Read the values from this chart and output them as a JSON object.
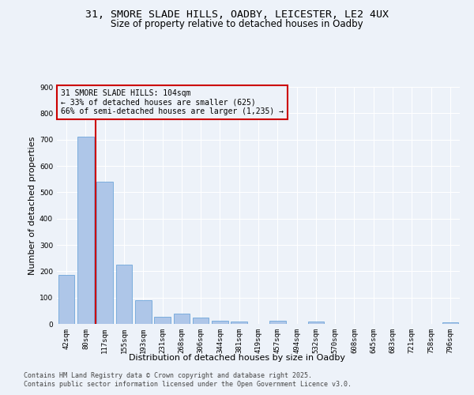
{
  "title_line1": "31, SMORE SLADE HILLS, OADBY, LEICESTER, LE2 4UX",
  "title_line2": "Size of property relative to detached houses in Oadby",
  "xlabel": "Distribution of detached houses by size in Oadby",
  "ylabel": "Number of detached properties",
  "categories": [
    "42sqm",
    "80sqm",
    "117sqm",
    "155sqm",
    "193sqm",
    "231sqm",
    "268sqm",
    "306sqm",
    "344sqm",
    "381sqm",
    "419sqm",
    "457sqm",
    "494sqm",
    "532sqm",
    "570sqm",
    "608sqm",
    "645sqm",
    "683sqm",
    "721sqm",
    "758sqm",
    "796sqm"
  ],
  "values": [
    185,
    710,
    540,
    225,
    90,
    28,
    38,
    25,
    12,
    10,
    0,
    12,
    0,
    10,
    0,
    0,
    0,
    0,
    0,
    0,
    5
  ],
  "bar_color": "#aec6e8",
  "bar_edge_color": "#5b9bd5",
  "vline_x": 1.5,
  "vline_color": "#cc0000",
  "annotation_text": "31 SMORE SLADE HILLS: 104sqm\n← 33% of detached houses are smaller (625)\n66% of semi-detached houses are larger (1,235) →",
  "annotation_box_color": "#cc0000",
  "ylim": [
    0,
    900
  ],
  "yticks": [
    0,
    100,
    200,
    300,
    400,
    500,
    600,
    700,
    800,
    900
  ],
  "footer_line1": "Contains HM Land Registry data © Crown copyright and database right 2025.",
  "footer_line2": "Contains public sector information licensed under the Open Government Licence v3.0.",
  "bg_color": "#edf2f9",
  "grid_color": "#ffffff",
  "title_fontsize": 9.5,
  "subtitle_fontsize": 8.5,
  "axis_label_fontsize": 8,
  "tick_fontsize": 6.5,
  "footer_fontsize": 6,
  "annotation_fontsize": 7
}
